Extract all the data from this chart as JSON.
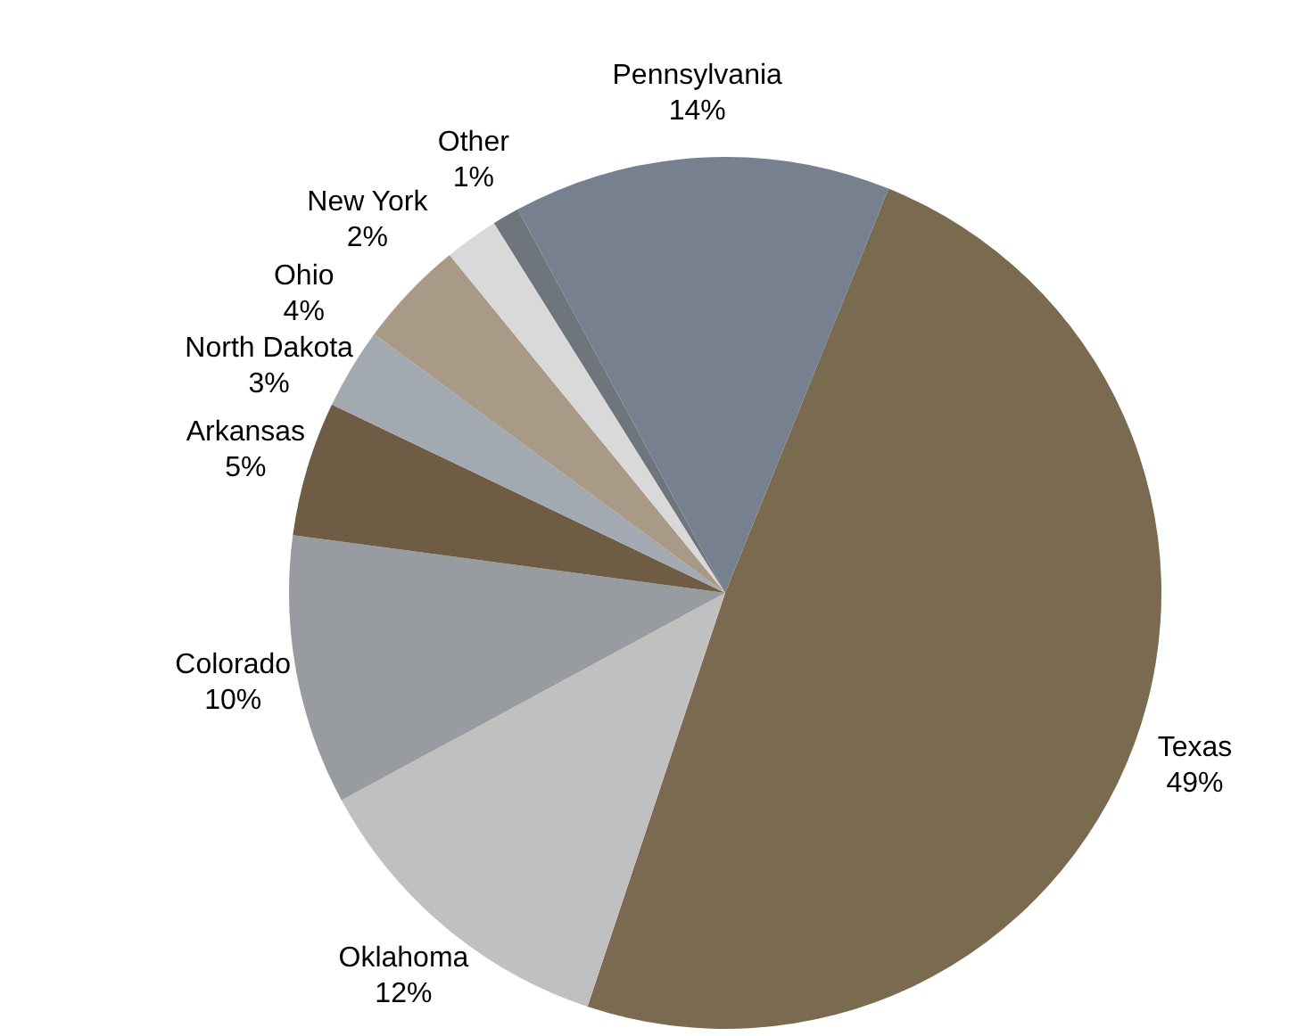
{
  "chart_data": {
    "type": "pie",
    "categories": [
      "Texas",
      "Oklahoma",
      "Colorado",
      "Arkansas",
      "North Dakota",
      "Ohio",
      "New York",
      "Other",
      "Pennsylvania"
    ],
    "values": [
      49,
      12,
      10,
      5,
      3,
      4,
      2,
      1,
      14
    ],
    "value_labels": [
      "49%",
      "12%",
      "10%",
      "5%",
      "3%",
      "4%",
      "2%",
      "1%",
      "14%"
    ],
    "colors": [
      "#7a6a4f",
      "#c0c0c0",
      "#989ca0",
      "#6e5c44",
      "#a3a9b1",
      "#a89a86",
      "#d9d9d9",
      "#6f757c",
      "#76808f"
    ]
  }
}
